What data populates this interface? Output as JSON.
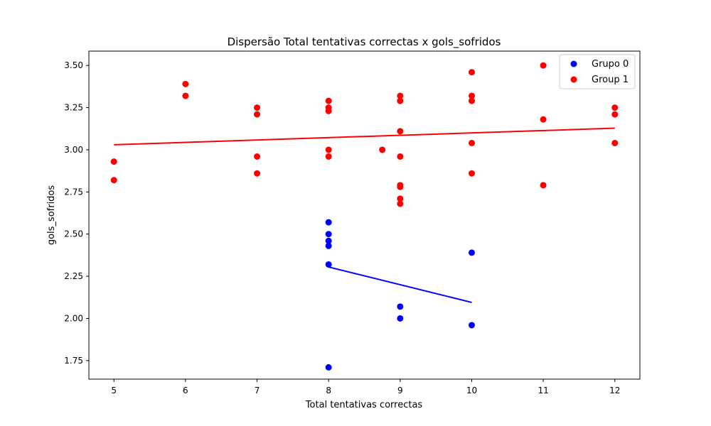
{
  "chart_data": {
    "type": "scatter",
    "title": "Dispersão Total tentativas correctas x gols_sofridos",
    "xlabel": "Total tentativas correctas",
    "ylabel": "gols_sofridos",
    "xlim": [
      4.65,
      12.35
    ],
    "ylim": [
      1.64,
      3.585
    ],
    "xticks": [
      5,
      6,
      7,
      8,
      9,
      10,
      11,
      12
    ],
    "yticks": [
      1.75,
      2.0,
      2.25,
      2.5,
      2.75,
      3.0,
      3.25,
      3.5
    ],
    "ytick_labels": [
      "1.75",
      "2.00",
      "2.25",
      "2.50",
      "2.75",
      "3.00",
      "3.25",
      "3.50"
    ],
    "grid": false,
    "legend_position": "top-right",
    "series": [
      {
        "name": "Grupo 0",
        "color": "#0000ff",
        "points": [
          [
            8,
            2.57
          ],
          [
            8,
            2.5
          ],
          [
            8,
            2.46
          ],
          [
            8,
            2.43
          ],
          [
            8,
            2.32
          ],
          [
            8,
            1.71
          ],
          [
            9,
            2.07
          ],
          [
            9,
            2.0
          ],
          [
            10,
            2.39
          ],
          [
            10,
            1.96
          ]
        ],
        "fit": [
          [
            8,
            2.305
          ],
          [
            10,
            2.095
          ]
        ]
      },
      {
        "name": "Group 1",
        "color": "#ff0000",
        "points": [
          [
            5,
            2.93
          ],
          [
            5,
            2.82
          ],
          [
            6,
            3.39
          ],
          [
            6,
            3.32
          ],
          [
            7,
            3.25
          ],
          [
            7,
            3.21
          ],
          [
            7,
            2.96
          ],
          [
            7,
            2.86
          ],
          [
            8,
            3.29
          ],
          [
            8,
            3.25
          ],
          [
            8,
            3.23
          ],
          [
            8,
            3.0
          ],
          [
            8,
            2.96
          ],
          [
            8.75,
            3.0
          ],
          [
            9,
            3.32
          ],
          [
            9,
            3.29
          ],
          [
            9,
            3.11
          ],
          [
            9,
            2.96
          ],
          [
            9,
            2.79
          ],
          [
            9,
            2.78
          ],
          [
            9,
            2.71
          ],
          [
            9,
            2.68
          ],
          [
            10,
            3.46
          ],
          [
            10,
            3.32
          ],
          [
            10,
            3.29
          ],
          [
            10,
            3.04
          ],
          [
            10,
            2.86
          ],
          [
            11,
            3.5
          ],
          [
            11,
            3.18
          ],
          [
            11,
            2.79
          ],
          [
            12,
            3.25
          ],
          [
            12,
            3.21
          ],
          [
            12,
            3.04
          ]
        ],
        "fit": [
          [
            5,
            3.03
          ],
          [
            12,
            3.128
          ]
        ]
      }
    ]
  }
}
